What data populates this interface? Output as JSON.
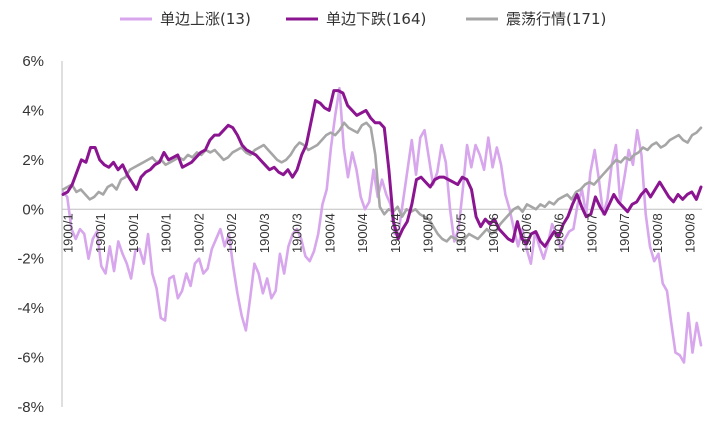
{
  "chart_data": {
    "type": "line",
    "title": "",
    "xlabel": "",
    "ylabel": "",
    "ylim": [
      -8,
      6
    ],
    "y_ticks": [
      -8,
      -6,
      -4,
      -2,
      0,
      2,
      4,
      6
    ],
    "y_tick_labels": [
      "-8%",
      "-6%",
      "-4%",
      "-2%",
      "0%",
      "2%",
      "4%",
      "6%"
    ],
    "x_tick_labels": [
      "1900/1",
      "1900/1",
      "1900/1",
      "1900/1",
      "1900/2",
      "1900/2",
      "1900/3",
      "1900/3",
      "1900/4",
      "1900/4",
      "1900/4",
      "1900/5",
      "1900/5",
      "1900/6",
      "1900/6",
      "1900/6",
      "1900/7",
      "1900/7",
      "1900/8",
      "1900/8"
    ],
    "legend_position": "top",
    "series": [
      {
        "name": "单边上涨(13)",
        "color": "#d7a6ec",
        "values": [
          0.7,
          0.5,
          -0.8,
          -1.2,
          -0.8,
          -1.0,
          -2.0,
          -1.2,
          -0.9,
          -2.3,
          -2.6,
          -1.5,
          -2.5,
          -1.3,
          -1.8,
          -2.2,
          -2.8,
          -1.7,
          -1.6,
          -2.2,
          -1.0,
          -2.6,
          -3.2,
          -4.4,
          -4.5,
          -2.8,
          -2.7,
          -3.6,
          -3.3,
          -2.6,
          -3.1,
          -2.2,
          -2.0,
          -2.6,
          -2.4,
          -1.6,
          -1.2,
          -0.8,
          -1.5,
          -1.0,
          -2.3,
          -3.4,
          -4.3,
          -4.9,
          -3.6,
          -2.2,
          -2.6,
          -3.4,
          -2.8,
          -3.6,
          -3.3,
          -1.8,
          -2.6,
          -1.5,
          -1.0,
          -0.8,
          -1.2,
          -1.9,
          -2.1,
          -1.7,
          -1.0,
          0.2,
          0.8,
          2.5,
          3.8,
          4.9,
          2.5,
          1.3,
          2.3,
          1.6,
          0.5,
          0.0,
          0.3,
          1.6,
          0.5,
          1.2,
          0.6,
          0.2,
          -1.0,
          -0.8,
          0.4,
          1.6,
          2.8,
          1.4,
          2.9,
          3.2,
          2.1,
          1.0,
          1.5,
          2.6,
          1.9,
          0.0,
          -1.3,
          -0.8,
          0.8,
          2.6,
          1.7,
          2.6,
          2.2,
          1.6,
          2.9,
          1.7,
          2.5,
          1.8,
          0.6,
          0.0,
          -0.8,
          -1.5,
          -0.8,
          -1.6,
          -2.2,
          -0.9,
          -1.5,
          -2.0,
          -1.4,
          -0.6,
          -1.0,
          -1.6,
          -1.2,
          -0.9,
          -0.8,
          0.2,
          0.8,
          -0.2,
          1.5,
          2.4,
          1.2,
          -0.2,
          0.4,
          1.8,
          2.6,
          0.3,
          1.3,
          2.4,
          1.8,
          3.2,
          2.2,
          -0.2,
          -1.5,
          -2.1,
          -1.8,
          -3.0,
          -3.3,
          -4.6,
          -5.8,
          -5.9,
          -6.2,
          -4.2,
          -5.8,
          -4.6,
          -5.5
        ]
      },
      {
        "name": "单边下跌(164)",
        "color": "#8b1591",
        "values": [
          0.6,
          0.7,
          1.0,
          1.5,
          2.0,
          1.9,
          2.5,
          2.5,
          2.0,
          1.8,
          1.7,
          1.9,
          1.6,
          1.8,
          1.4,
          1.1,
          0.8,
          1.3,
          1.5,
          1.6,
          1.8,
          1.9,
          2.3,
          2.0,
          2.1,
          2.2,
          1.7,
          1.8,
          1.9,
          2.1,
          2.3,
          2.4,
          2.8,
          3.0,
          3.0,
          3.2,
          3.4,
          3.3,
          3.0,
          2.6,
          2.4,
          2.3,
          2.2,
          2.0,
          1.8,
          1.6,
          1.7,
          1.5,
          1.4,
          1.6,
          1.3,
          1.6,
          2.2,
          2.6,
          3.5,
          4.4,
          4.3,
          4.1,
          4.0,
          4.8,
          4.8,
          4.7,
          4.2,
          4.0,
          3.8,
          3.9,
          4.0,
          3.7,
          3.5,
          3.5,
          3.3,
          1.6,
          -0.5,
          -1.2,
          -0.8,
          -0.5,
          0.2,
          1.2,
          1.3,
          1.1,
          0.9,
          1.2,
          1.3,
          1.3,
          1.2,
          1.1,
          1.0,
          1.3,
          1.2,
          0.8,
          -0.3,
          -0.7,
          -0.4,
          -0.6,
          -0.4,
          -0.8,
          -1.0,
          -1.2,
          -1.3,
          -0.5,
          -1.2,
          -1.4,
          -1.0,
          -0.9,
          -1.3,
          -1.5,
          -1.2,
          -0.9,
          -1.1,
          -0.6,
          -0.3,
          0.2,
          0.6,
          0.1,
          -0.3,
          -0.2,
          0.5,
          0.1,
          -0.2,
          0.2,
          0.6,
          0.3,
          0.1,
          -0.1,
          0.2,
          0.3,
          0.6,
          0.8,
          0.5,
          0.8,
          1.1,
          0.8,
          0.5,
          0.3,
          0.6,
          0.4,
          0.6,
          0.7,
          0.4,
          0.9
        ]
      },
      {
        "name": "震荡行情(171)",
        "color": "#a6a6a6",
        "values": [
          0.8,
          0.9,
          1.0,
          0.7,
          0.8,
          0.6,
          0.4,
          0.5,
          0.7,
          0.6,
          0.9,
          1.0,
          0.8,
          1.2,
          1.3,
          1.6,
          1.7,
          1.8,
          1.9,
          2.0,
          2.1,
          1.9,
          2.0,
          1.8,
          1.9,
          2.0,
          2.1,
          2.0,
          2.2,
          2.1,
          2.3,
          2.2,
          2.4,
          2.3,
          2.4,
          2.2,
          2.0,
          2.1,
          2.3,
          2.4,
          2.5,
          2.3,
          2.2,
          2.4,
          2.5,
          2.6,
          2.4,
          2.2,
          2.0,
          1.9,
          2.0,
          2.2,
          2.5,
          2.7,
          2.6,
          2.4,
          2.5,
          2.6,
          2.8,
          3.0,
          3.1,
          3.0,
          3.2,
          3.5,
          3.3,
          3.2,
          3.1,
          3.4,
          3.5,
          3.3,
          2.2,
          0.1,
          -0.2,
          0.0,
          -0.1,
          0.1,
          -0.3,
          0.0,
          -0.1,
          0.0,
          -0.2,
          -0.3,
          -0.4,
          -0.7,
          -1.0,
          -1.2,
          -1.3,
          -1.1,
          -1.2,
          -1.3,
          -1.2,
          -1.0,
          -1.1,
          -1.2,
          -1.0,
          -0.8,
          -1.0,
          -0.9,
          -0.6,
          -0.4,
          -0.2,
          0.0,
          0.1,
          -0.1,
          0.2,
          0.1,
          0.0,
          0.2,
          0.1,
          0.3,
          0.2,
          0.4,
          0.5,
          0.6,
          0.4,
          0.7,
          0.8,
          1.0,
          1.1,
          1.0,
          1.2,
          1.4,
          1.6,
          1.8,
          2.0,
          1.9,
          2.1,
          2.0,
          2.2,
          2.3,
          2.5,
          2.4,
          2.6,
          2.7,
          2.5,
          2.6,
          2.8,
          2.9,
          3.0,
          2.8,
          2.7,
          3.0,
          3.1,
          3.3
        ]
      }
    ]
  }
}
